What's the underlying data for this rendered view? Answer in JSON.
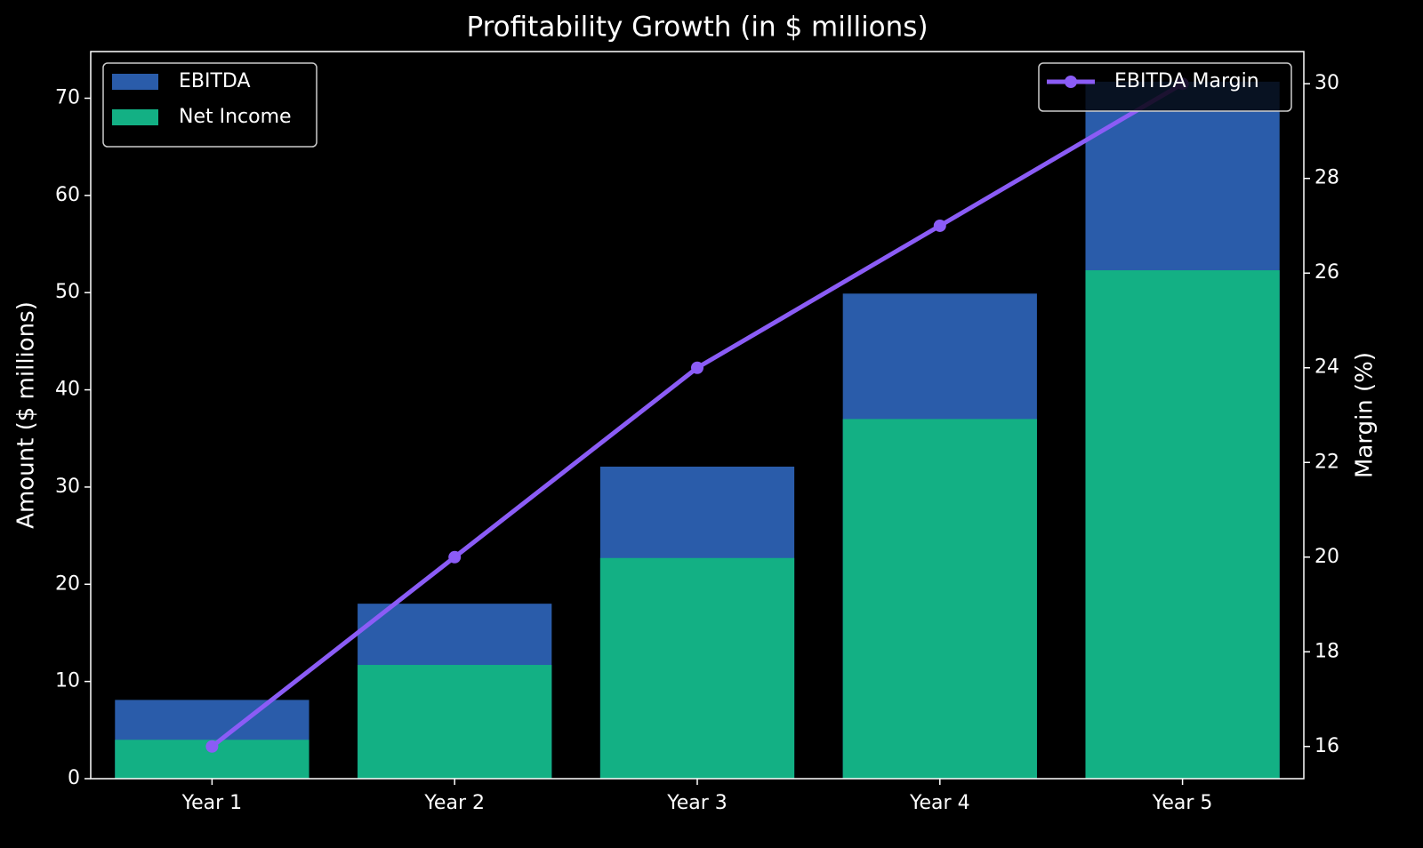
{
  "chart_data": {
    "type": "bar",
    "title": "Profitability Growth (in $ millions)",
    "ylabel": "Amount ($ millions)",
    "y2label": "Margin (%)",
    "categories": [
      "Year 1",
      "Year 2",
      "Year 3",
      "Year 4",
      "Year 5"
    ],
    "series": [
      {
        "name": "EBITDA",
        "type": "bar",
        "color": "#2a5caa",
        "values": [
          8.1,
          18.0,
          32.1,
          49.9,
          71.7
        ]
      },
      {
        "name": "Net Income",
        "type": "bar",
        "color": "#13b084",
        "values": [
          4.0,
          11.7,
          22.7,
          37.0,
          52.3
        ]
      },
      {
        "name": "EBITDA Margin",
        "type": "line",
        "axis": "y2",
        "color": "#8b5cf6",
        "values": [
          16,
          20,
          24,
          27,
          30
        ]
      }
    ],
    "ylim": [
      0,
      74.8
    ],
    "yticks": [
      0,
      10,
      20,
      30,
      40,
      50,
      60,
      70
    ],
    "y2lim": [
      15.32,
      30.68
    ],
    "y2ticks": [
      16,
      18,
      20,
      22,
      24,
      26,
      28,
      30
    ],
    "legend": "upper left",
    "legend2": "upper right"
  }
}
